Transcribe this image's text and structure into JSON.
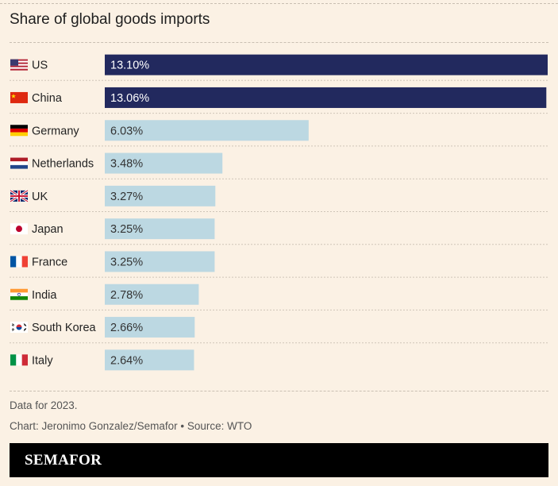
{
  "title": "Share of global goods imports",
  "chart_data": {
    "type": "bar",
    "orientation": "horizontal",
    "categories": [
      "US",
      "China",
      "Germany",
      "Netherlands",
      "UK",
      "Japan",
      "France",
      "India",
      "South Korea",
      "Italy"
    ],
    "values": [
      13.1,
      13.06,
      6.03,
      3.48,
      3.27,
      3.25,
      3.25,
      2.78,
      2.66,
      2.64
    ],
    "value_labels": [
      "13.10%",
      "13.06%",
      "6.03%",
      "3.48%",
      "3.27%",
      "3.25%",
      "3.25%",
      "2.78%",
      "2.66%",
      "2.64%"
    ],
    "flags": [
      "us-flag-icon",
      "china-flag-icon",
      "germany-flag-icon",
      "netherlands-flag-icon",
      "uk-flag-icon",
      "japan-flag-icon",
      "france-flag-icon",
      "india-flag-icon",
      "south-korea-flag-icon",
      "italy-flag-icon"
    ],
    "highlight_colors": {
      "top": "#22295e",
      "rest": "#bcd8e2"
    },
    "highlight_count": 2,
    "xlim": [
      0,
      13.1
    ],
    "grid": false
  },
  "footer": {
    "note": "Data for 2023.",
    "credit": "Chart: Jeronimo Gonzalez/Semafor • Source: WTO"
  },
  "brand": "SEMAFOR",
  "colors": {
    "background": "#fbf1e4",
    "brand_bar": "#000000"
  }
}
